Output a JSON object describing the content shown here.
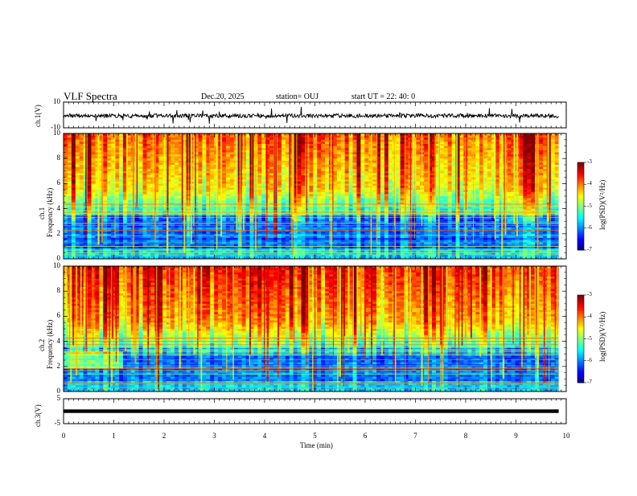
{
  "header": {
    "title": "VLF Spectra",
    "date": "Dec.20, 2025",
    "station": "station= OUJ",
    "start": "start UT = 22: 40: 0"
  },
  "chart_data": [
    {
      "type": "line",
      "name": "ch1-waveform",
      "ylabel": "ch.1(V)",
      "ylim": [
        -10,
        10
      ],
      "yticks": [
        "10",
        "-10"
      ],
      "color": "#000000"
    },
    {
      "type": "heatmap",
      "name": "ch1-spectrogram",
      "ylabel": "Frequency (kHz)",
      "ylabel_prefix": "ch.1",
      "ylim": [
        0,
        10
      ],
      "yticks": [
        "10",
        "8",
        "6",
        "4",
        "2",
        "0"
      ],
      "colorbar": {
        "label": "log(PSD)(V²/Hz)",
        "range": [
          -7,
          -3
        ],
        "ticks": [
          "-3",
          "-4",
          "-5",
          "-6",
          "-7"
        ]
      }
    },
    {
      "type": "heatmap",
      "name": "ch2-spectrogram",
      "ylabel": "Frequency (kHz)",
      "ylabel_prefix": "ch.2",
      "ylim": [
        0,
        10
      ],
      "yticks": [
        "10",
        "8",
        "6",
        "4",
        "2",
        "0"
      ],
      "colorbar": {
        "label": "log(PSD)(V²/Hz)",
        "range": [
          -7,
          -3
        ],
        "ticks": [
          "-3",
          "-4",
          "-5",
          "-6",
          "-7"
        ]
      }
    },
    {
      "type": "line",
      "name": "ch3-waveform",
      "ylabel": "ch.3(V)",
      "ylim": [
        -5,
        5
      ],
      "yticks": [
        "5",
        "-5"
      ],
      "values_approx": 0,
      "color": "#000000"
    }
  ],
  "xaxis": {
    "label": "Time (min)",
    "range": [
      0,
      10
    ],
    "ticks": [
      "0",
      "1",
      "2",
      "3",
      "4",
      "5",
      "6",
      "7",
      "8",
      "9",
      "10"
    ],
    "data_end": 9.85
  }
}
